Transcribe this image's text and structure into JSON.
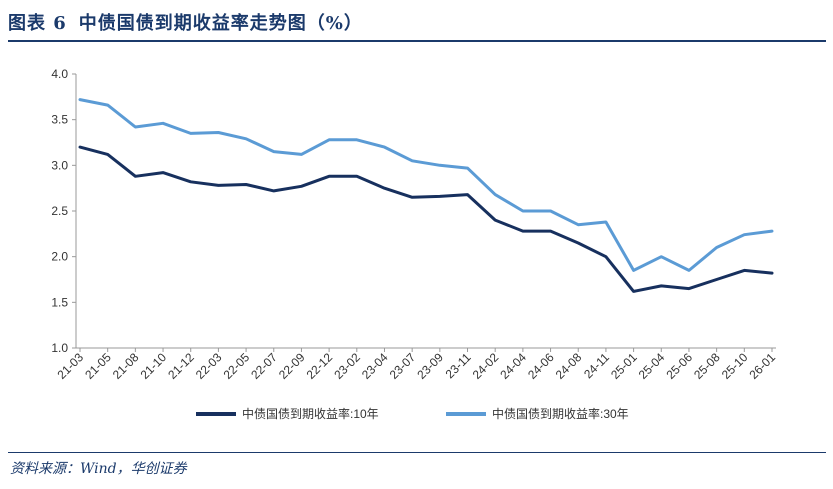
{
  "header": {
    "figure_no": "图表 6",
    "title": "中债国债到期收益率走势图（%）"
  },
  "footer": {
    "source": "资料来源：Wind，华创证券"
  },
  "colors": {
    "series_10y": "#17305e",
    "series_30y": "#5b9bd5",
    "axis": "#999999",
    "title": "#1b3a6b"
  },
  "chart_data": {
    "type": "line",
    "title": "中债国债到期收益率走势图（%）",
    "xlabel": "",
    "ylabel": "",
    "ylim": [
      1.0,
      4.0
    ],
    "yticks": [
      "4.0",
      "3.5",
      "3.0",
      "2.5",
      "2.0",
      "1.5",
      "1.0"
    ],
    "grid": false,
    "legend_position": "bottom",
    "x": [
      "21-03",
      "21-05",
      "21-08",
      "21-10",
      "21-12",
      "22-03",
      "22-05",
      "22-07",
      "22-09",
      "22-12",
      "23-02",
      "23-04",
      "23-07",
      "23-09",
      "23-11",
      "24-02",
      "24-04",
      "24-06",
      "24-08",
      "24-11",
      "25-01",
      "25-04",
      "25-06",
      "25-08",
      "25-10",
      "26-01"
    ],
    "series": [
      {
        "name": "中债国债到期收益率:10年",
        "values": [
          3.2,
          3.12,
          2.88,
          2.92,
          2.82,
          2.78,
          2.79,
          2.72,
          2.77,
          2.88,
          2.88,
          2.75,
          2.65,
          2.66,
          2.68,
          2.4,
          2.28,
          2.28,
          2.15,
          2.0,
          1.62,
          1.68,
          1.65,
          1.75,
          1.85,
          1.82
        ]
      },
      {
        "name": "中债国债到期收益率:30年",
        "values": [
          3.72,
          3.66,
          3.42,
          3.46,
          3.35,
          3.36,
          3.29,
          3.15,
          3.12,
          3.28,
          3.28,
          3.2,
          3.05,
          3.0,
          2.97,
          2.68,
          2.5,
          2.5,
          2.35,
          2.38,
          1.85,
          2.0,
          1.85,
          2.1,
          2.24,
          2.28
        ]
      }
    ]
  }
}
